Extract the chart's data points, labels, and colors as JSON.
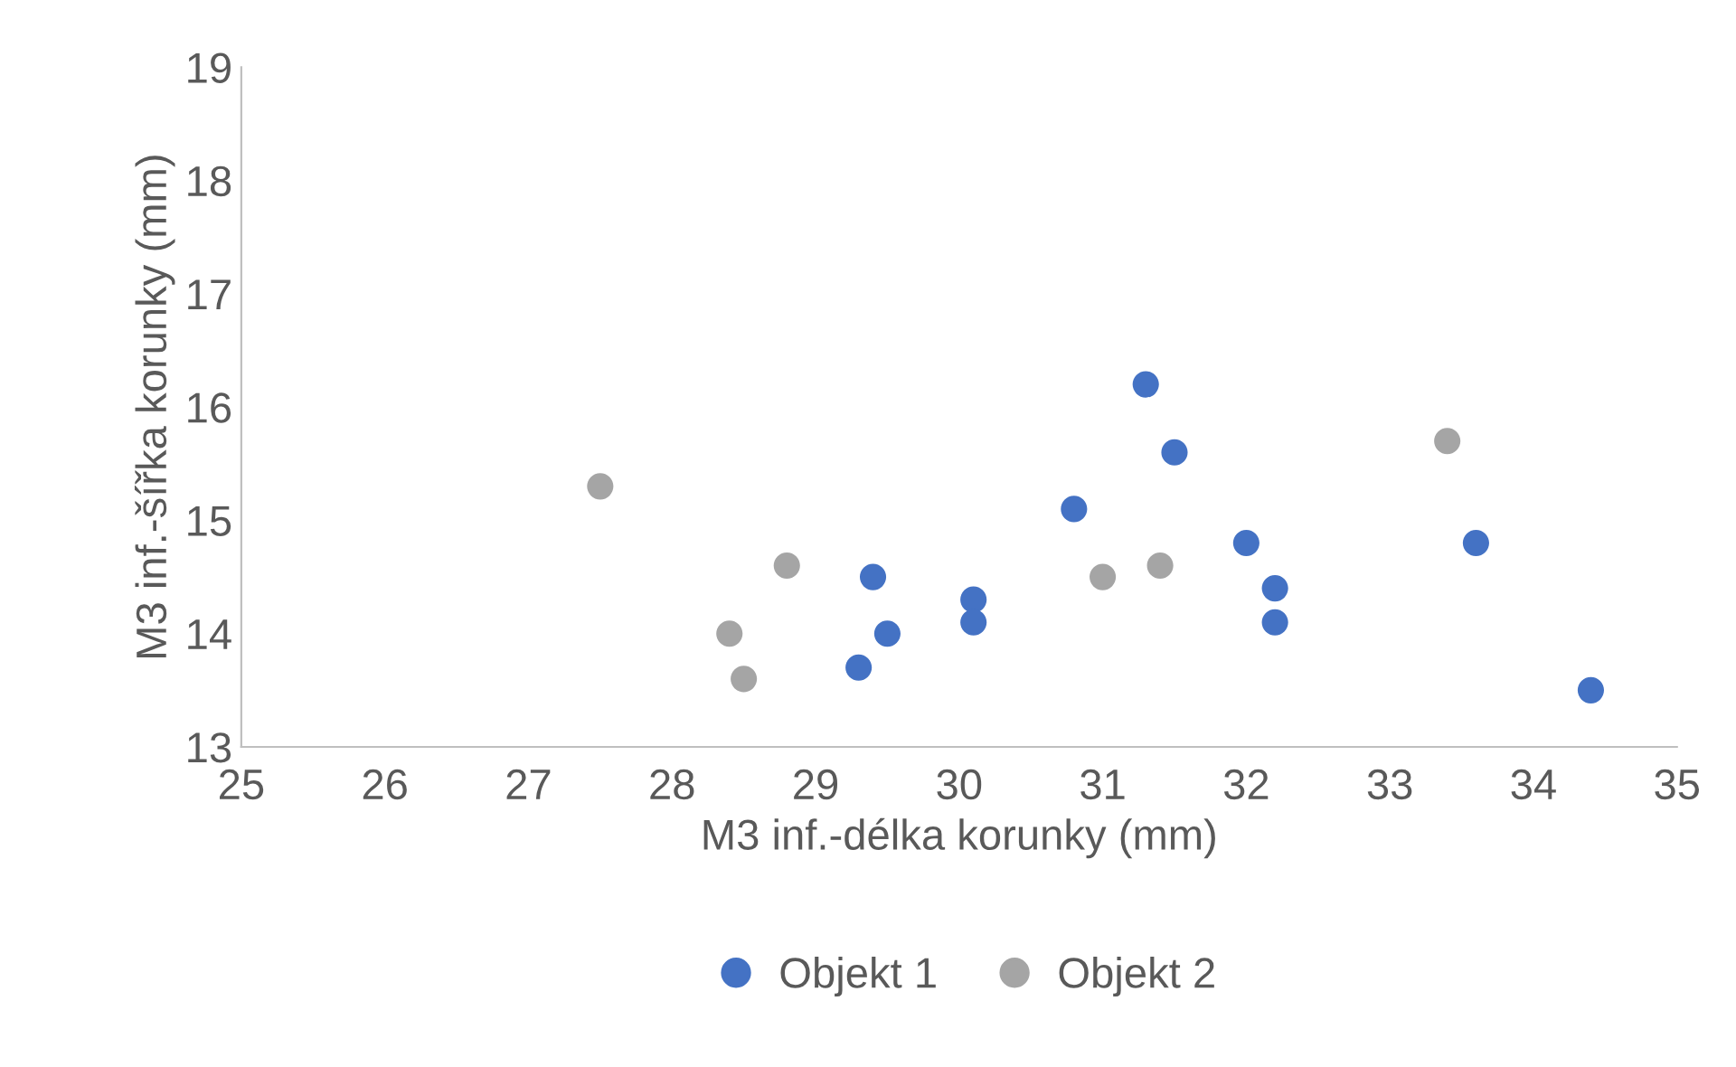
{
  "chart_data": {
    "type": "scatter",
    "xlabel": "M3 inf.-délka korunky (mm)",
    "ylabel": "M3 inf.-šířka korunky (mm)",
    "xlim": [
      25,
      35
    ],
    "xticks": [
      25,
      26,
      27,
      28,
      29,
      30,
      31,
      32,
      33,
      34,
      35
    ],
    "ylim": [
      13,
      19
    ],
    "yticks": [
      13,
      14,
      15,
      16,
      17,
      18,
      19
    ],
    "grid": false,
    "legend": "bottom",
    "marker": "circle",
    "series": [
      {
        "name": "Objekt 1",
        "color": "#4472c4",
        "x": [
          31.3,
          31.5,
          30.8,
          32.0,
          33.6,
          32.2,
          32.2,
          29.4,
          30.1,
          30.1,
          29.5,
          29.3,
          34.4
        ],
        "values": [
          16.2,
          15.6,
          15.1,
          14.8,
          14.8,
          14.4,
          14.1,
          14.5,
          14.3,
          14.1,
          14.0,
          13.7,
          13.5
        ]
      },
      {
        "name": "Objekt 2",
        "color": "#a5a5a5",
        "x": [
          27.5,
          28.8,
          28.4,
          28.5,
          31.0,
          31.4,
          33.4
        ],
        "values": [
          15.3,
          14.6,
          14.0,
          13.6,
          14.5,
          14.6,
          15.7
        ]
      }
    ]
  }
}
